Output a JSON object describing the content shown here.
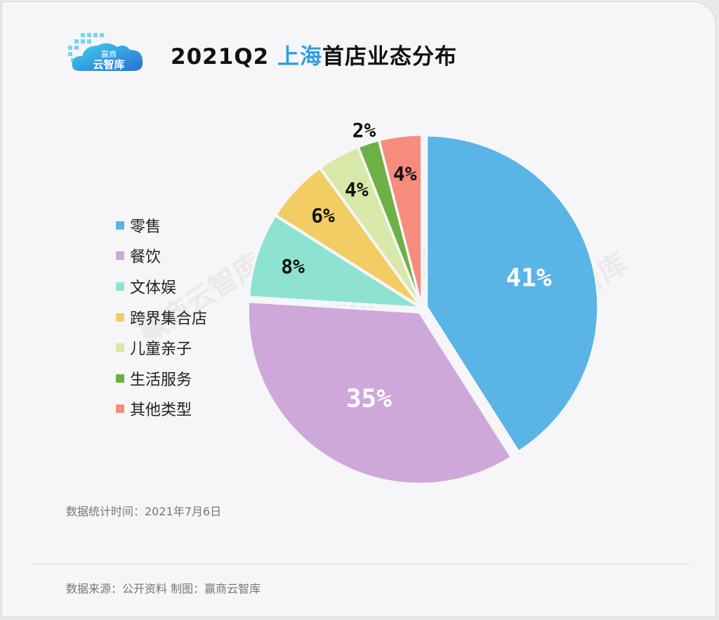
{
  "header": {
    "logo_line1": "赢商",
    "logo_line2": "云智库",
    "title_prefix": "2021Q2 ",
    "title_highlight": "上海",
    "title_suffix": "首店业态分布"
  },
  "colors": {
    "accent": "#2f9ee2",
    "label_dark": "#111111",
    "label_light": "#ffffff"
  },
  "chart_data": {
    "type": "pie",
    "title": "2021Q2 上海首店业态分布",
    "legend_position": "left",
    "slices": [
      {
        "name": "零售",
        "value": 41,
        "label": "41%",
        "color": "#5ab4e6",
        "label_color": "#ffffff"
      },
      {
        "name": "餐饮",
        "value": 35,
        "label": "35%",
        "color": "#cfa8da",
        "label_color": "#ffffff"
      },
      {
        "name": "文体娱",
        "value": 8,
        "label": "8%",
        "color": "#8ee3d0",
        "label_color": "#111111"
      },
      {
        "name": "跨界集合店",
        "value": 6,
        "label": "6%",
        "color": "#f2cd63",
        "label_color": "#111111"
      },
      {
        "name": "儿童亲子",
        "value": 4,
        "label": "4%",
        "color": "#d8e8a8",
        "label_color": "#111111"
      },
      {
        "name": "生活服务",
        "value": 2,
        "label": "2%",
        "color": "#6db146",
        "label_color": "#111111"
      },
      {
        "name": "其他类型",
        "value": 4,
        "label": "4%",
        "color": "#f58c7c",
        "label_color": "#111111"
      }
    ]
  },
  "footer": {
    "date": "数据统计时间：2021年7月6日",
    "source": "数据来源：公开资料   制图：赢商云智库"
  },
  "watermark": "赢商云智库"
}
